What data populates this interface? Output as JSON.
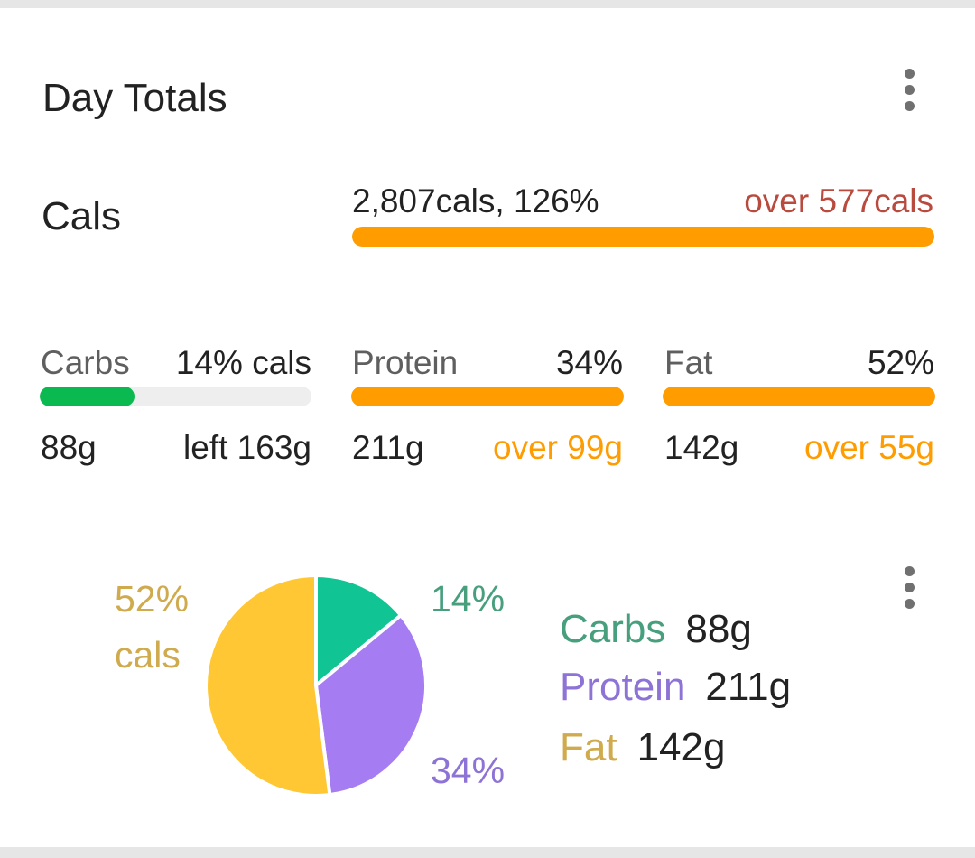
{
  "card": {
    "title": "Day Totals",
    "menu_icon": "more-vert-icon"
  },
  "cals": {
    "label": "Cals",
    "summary": "2,807cals, 126%",
    "status": "over 577cals",
    "progress": 1.0,
    "colors": {
      "fill": "#ff9c00",
      "status": "#b84a3e"
    }
  },
  "macros": [
    {
      "name": "Carbs",
      "pct": "14% cals",
      "grams": "88g",
      "delta": "left 163g",
      "progress": 0.35,
      "fill": "#0ab94f",
      "delta_color": "#222222"
    },
    {
      "name": "Protein",
      "pct": "34%",
      "grams": "211g",
      "delta": "over 99g",
      "progress": 1.0,
      "fill": "#ff9c00",
      "delta_color": "#ff9c00"
    },
    {
      "name": "Fat",
      "pct": "52%",
      "grams": "142g",
      "delta": "over 55g",
      "progress": 1.0,
      "fill": "#ff9c00",
      "delta_color": "#ff9c00"
    }
  ],
  "chart_data": {
    "type": "pie",
    "slices": [
      {
        "label": "Carbs",
        "value": 14,
        "color": "#10c493"
      },
      {
        "label": "Protein",
        "value": 34,
        "color": "#a67cf2"
      },
      {
        "label": "Fat",
        "value": 52,
        "color": "#fec733"
      }
    ],
    "labels": {
      "fat_line1": "52%",
      "fat_line2": "cals",
      "carbs": "14%",
      "protein": "34%"
    },
    "label_colors": {
      "fat": "#cfab4e",
      "carbs": "#479f7e",
      "protein": "#8e73d6"
    }
  },
  "legend": [
    {
      "name": "Carbs",
      "value": "88g",
      "color": "#479f7e"
    },
    {
      "name": "Protein",
      "value": "211g",
      "color": "#8e73d6"
    },
    {
      "name": "Fat",
      "value": "142g",
      "color": "#cfab4e"
    }
  ]
}
